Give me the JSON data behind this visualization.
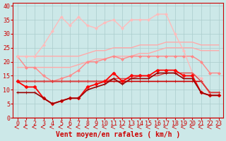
{
  "x": [
    0,
    1,
    2,
    3,
    4,
    5,
    6,
    7,
    8,
    9,
    10,
    11,
    12,
    13,
    14,
    15,
    16,
    17,
    18,
    19,
    20,
    21,
    22,
    23
  ],
  "background_color": "#cce8e8",
  "grid_color": "#aacccc",
  "xlabel": "Vent moyen/en rafales ( km/h )",
  "xlabel_color": "#cc0000",
  "xlabel_fontsize": 7,
  "tick_color": "#cc0000",
  "tick_fontsize": 6,
  "ylim": [
    0,
    41
  ],
  "xlim": [
    -0.5,
    23.5
  ],
  "yticks": [
    0,
    5,
    10,
    15,
    20,
    25,
    30,
    35,
    40
  ],
  "lines": [
    {
      "y": [
        22,
        22,
        22,
        22,
        22,
        22,
        22,
        22,
        23,
        24,
        24,
        25,
        25,
        25,
        26,
        26,
        26,
        27,
        27,
        27,
        27,
        26,
        26,
        26
      ],
      "color": "#ffaaaa",
      "lw": 1.0,
      "marker": null,
      "markersize": 0
    },
    {
      "y": [
        18,
        18,
        18,
        18,
        18,
        18,
        18,
        19,
        20,
        21,
        21,
        22,
        22,
        22,
        23,
        23,
        24,
        25,
        25,
        25,
        25,
        24,
        24,
        24
      ],
      "color": "#ffaaaa",
      "lw": 1.0,
      "marker": null,
      "markersize": 0
    },
    {
      "y": [
        22,
        18,
        18,
        15,
        13,
        14,
        15,
        17,
        20,
        20,
        21,
        22,
        21,
        22,
        22,
        22,
        22,
        22,
        22,
        22,
        22,
        20,
        16,
        16
      ],
      "color": "#ff8888",
      "lw": 1.0,
      "marker": "D",
      "markersize": 2.0
    },
    {
      "y": [
        22,
        22,
        22,
        26,
        31,
        36,
        33,
        36,
        33,
        32,
        34,
        35,
        32,
        35,
        35,
        35,
        37,
        37,
        30,
        24,
        16,
        14,
        8,
        8
      ],
      "color": "#ffbbbb",
      "lw": 1.0,
      "marker": "D",
      "markersize": 2.0
    },
    {
      "y": [
        13,
        13,
        13,
        13,
        13,
        13,
        13,
        13,
        13,
        13,
        13,
        13,
        13,
        13,
        13,
        13,
        13,
        13,
        13,
        13,
        13,
        13,
        9,
        9
      ],
      "color": "#cc0000",
      "lw": 1.2,
      "marker": "+",
      "markersize": 3.5
    },
    {
      "y": [
        13,
        13,
        13,
        13,
        13,
        13,
        13,
        13,
        13,
        13,
        13,
        14,
        14,
        14,
        15,
        15,
        15,
        16,
        16,
        16,
        16,
        13,
        9,
        9
      ],
      "color": "#dd4444",
      "lw": 1.0,
      "marker": null,
      "markersize": 0
    },
    {
      "y": [
        13,
        11,
        11,
        7,
        5,
        6,
        7,
        7,
        11,
        12,
        13,
        16,
        13,
        15,
        15,
        15,
        17,
        17,
        17,
        15,
        15,
        9,
        8,
        8
      ],
      "color": "#ff0000",
      "lw": 1.3,
      "marker": "D",
      "markersize": 2.5
    },
    {
      "y": [
        9,
        9,
        9,
        7,
        5,
        6,
        7,
        7,
        10,
        11,
        12,
        14,
        12,
        14,
        14,
        14,
        16,
        16,
        16,
        14,
        14,
        9,
        8,
        8
      ],
      "color": "#990000",
      "lw": 1.2,
      "marker": "+",
      "markersize": 3.5
    }
  ],
  "arrow_color": "#cc0000"
}
